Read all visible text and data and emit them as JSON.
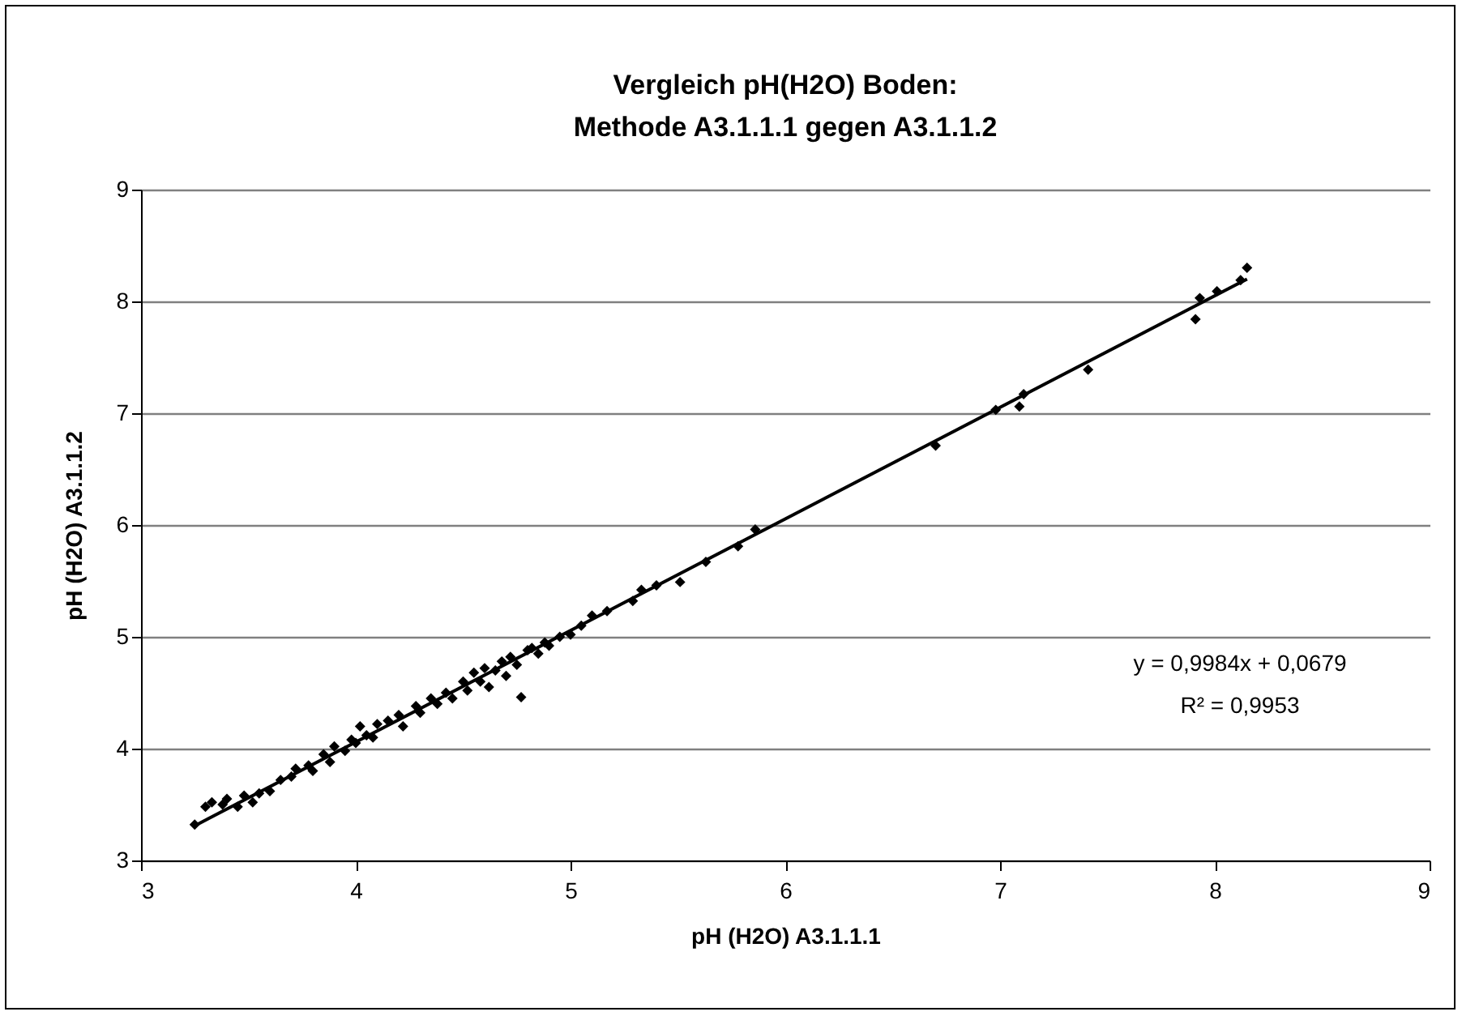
{
  "chart_data": {
    "type": "scatter",
    "title": "Vergleich pH(H2O) Boden:\nMethode A3.1.1.1 gegen A3.1.1.2",
    "xlabel": "pH (H2O) A3.1.1.1",
    "ylabel": "pH (H2O) A3.1.1.2",
    "x": [
      3.25,
      3.3,
      3.33,
      3.38,
      3.4,
      3.45,
      3.48,
      3.52,
      3.55,
      3.6,
      3.65,
      3.7,
      3.72,
      3.78,
      3.8,
      3.85,
      3.88,
      3.9,
      3.95,
      3.98,
      4.0,
      4.02,
      4.05,
      4.08,
      4.1,
      4.15,
      4.2,
      4.22,
      4.28,
      4.3,
      4.35,
      4.38,
      4.42,
      4.45,
      4.5,
      4.52,
      4.55,
      4.58,
      4.6,
      4.62,
      4.65,
      4.68,
      4.7,
      4.72,
      4.75,
      4.77,
      4.8,
      4.82,
      4.85,
      4.88,
      4.9,
      4.95,
      5.0,
      5.05,
      5.1,
      5.17,
      5.29,
      5.33,
      5.4,
      5.51,
      5.63,
      5.78,
      5.86,
      6.7,
      6.98,
      7.09,
      7.11,
      7.41,
      7.91,
      7.93,
      8.01,
      8.12,
      8.15
    ],
    "series": [
      {
        "color": "#000000",
        "marker": "diamond",
        "values": [
          3.32,
          3.48,
          3.52,
          3.5,
          3.55,
          3.48,
          3.58,
          3.52,
          3.6,
          3.62,
          3.72,
          3.75,
          3.82,
          3.85,
          3.8,
          3.95,
          3.88,
          4.02,
          3.98,
          4.08,
          4.05,
          4.2,
          4.12,
          4.1,
          4.22,
          4.25,
          4.3,
          4.2,
          4.38,
          4.32,
          4.45,
          4.4,
          4.5,
          4.45,
          4.6,
          4.52,
          4.68,
          4.6,
          4.72,
          4.55,
          4.7,
          4.78,
          4.65,
          4.82,
          4.75,
          4.46,
          4.88,
          4.9,
          4.85,
          4.95,
          4.92,
          5.0,
          5.02,
          5.1,
          5.19,
          5.23,
          5.32,
          5.42,
          5.46,
          5.49,
          5.67,
          5.81,
          5.96,
          6.71,
          7.03,
          7.06,
          7.17,
          7.39,
          7.84,
          8.03,
          8.09,
          8.19,
          8.3
        ]
      },
      {
        "type": "line",
        "color": "#000000",
        "marker": "none",
        "x": [
          3.25,
          8.15
        ],
        "values": [
          3.31,
          8.2
        ]
      }
    ],
    "annotations": [
      "y = 0,9984x + 0,0679",
      "R² = 0,9953"
    ],
    "xlim": [
      3,
      9
    ],
    "ylim": [
      3,
      9
    ],
    "xticks": [
      3,
      4,
      5,
      6,
      7,
      8,
      9
    ],
    "yticks": [
      3,
      4,
      5,
      6,
      7,
      8,
      9
    ],
    "grid": "y"
  }
}
